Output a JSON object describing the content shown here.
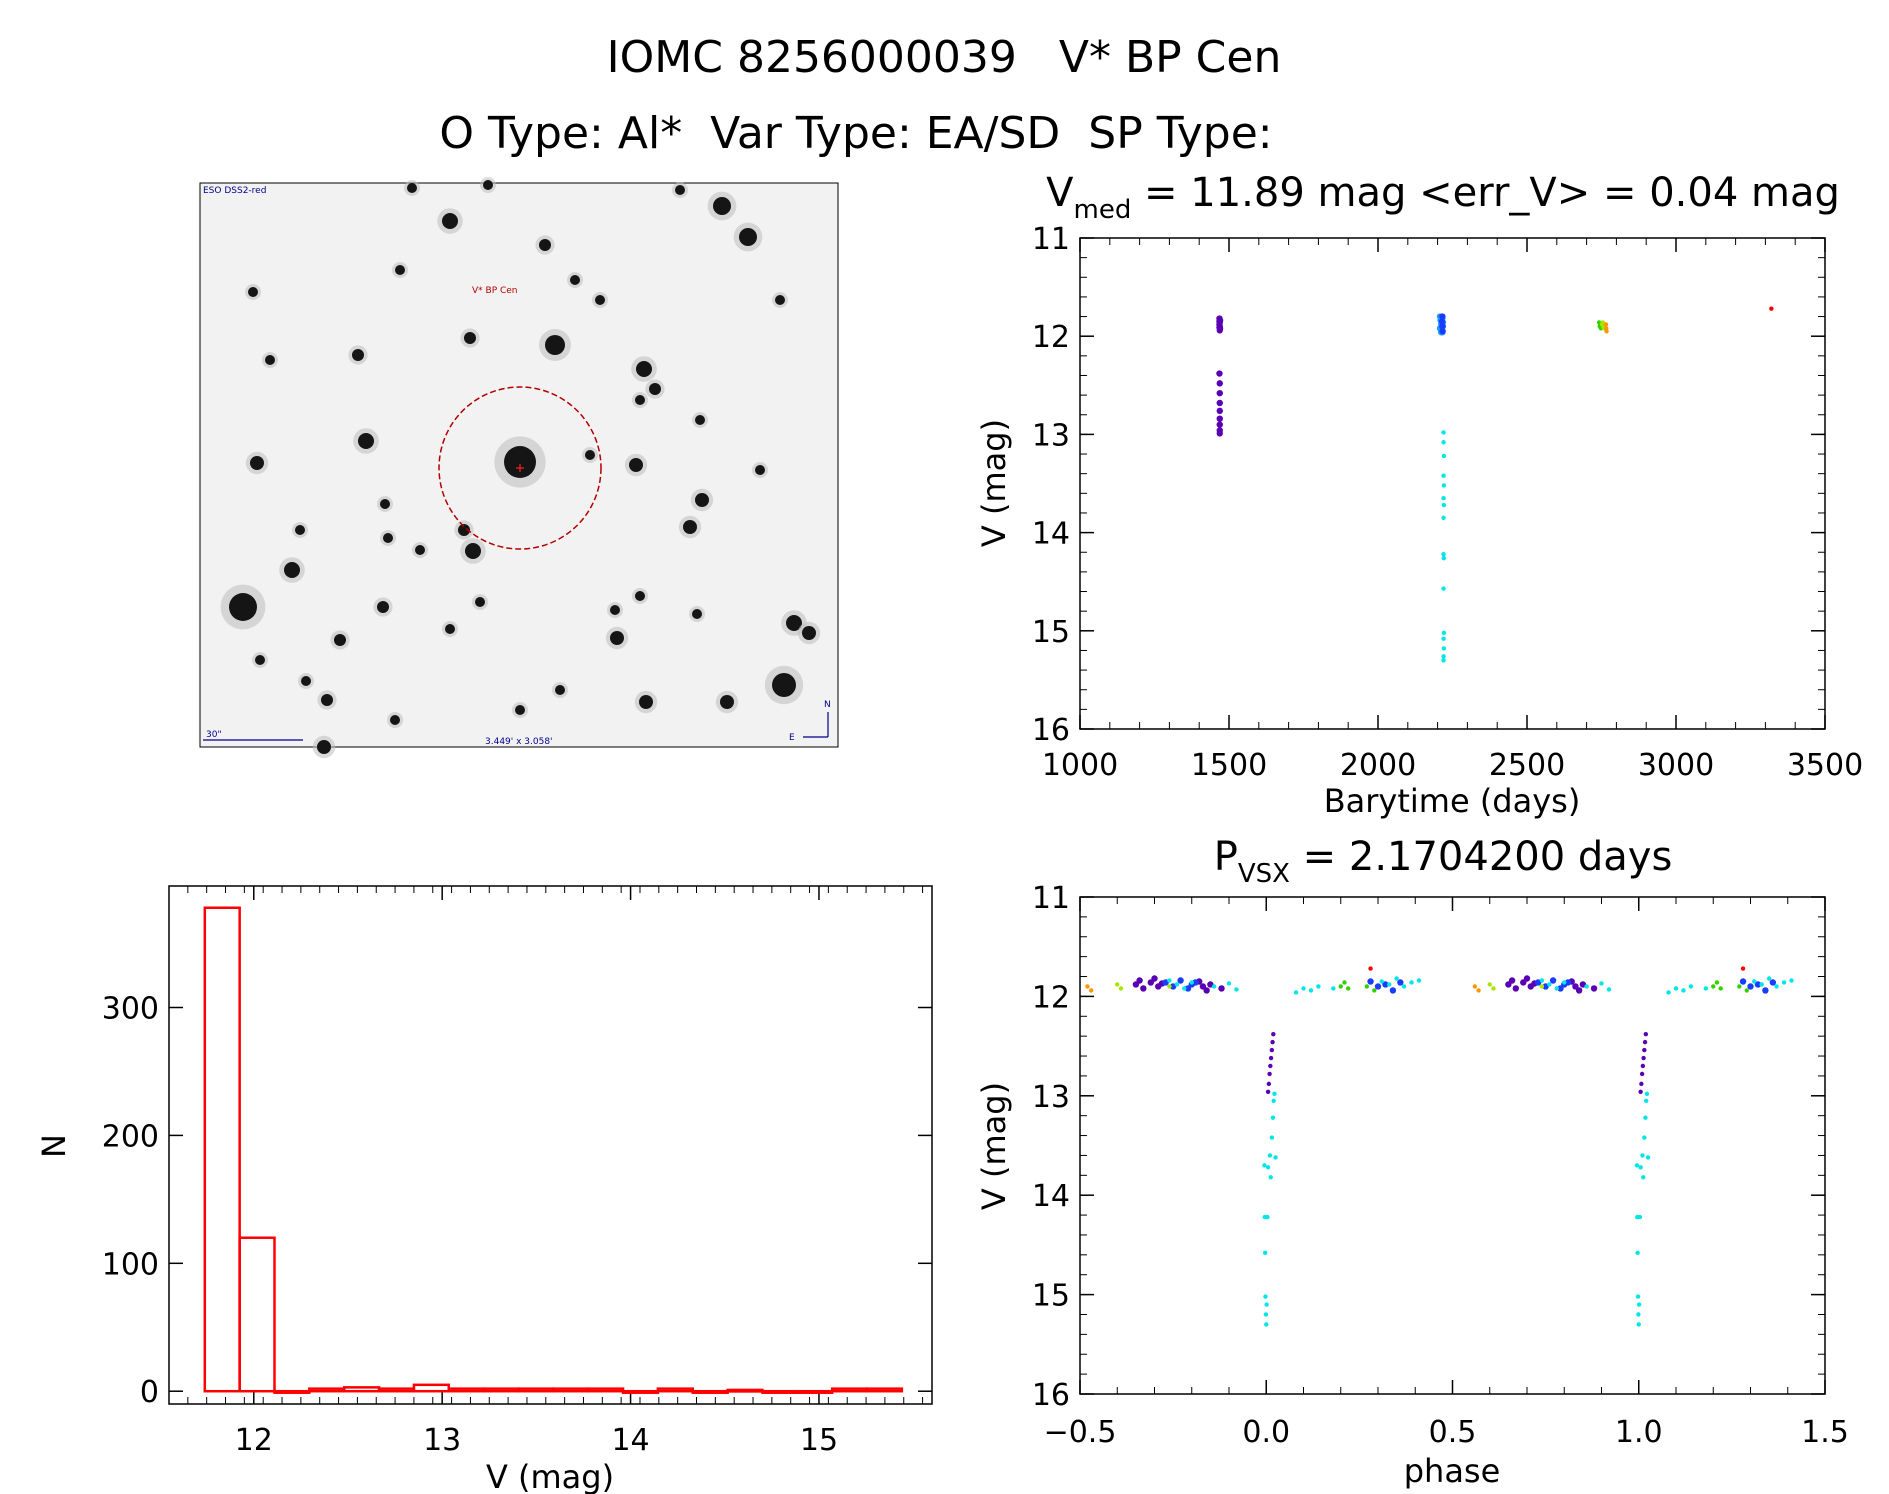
{
  "header": {
    "line1": "IOMC 8256000039   V* BP Cen",
    "line2": "O Type: Al*  Var Type: EA/SD  SP Type:"
  },
  "finder": {
    "survey_label": "ESO DSS2-red",
    "target_label": "V* BP Cen",
    "scale_label": "30\"",
    "fov_label": "3.449' x 3.058'",
    "north_label": "N",
    "east_label": "E"
  },
  "colors": {
    "hist": "#ff0000",
    "purple": "#5a00b4",
    "blue": "#1a3cff",
    "lightblue": "#1e9bff",
    "cyan": "#00e6e6",
    "green": "#32d200",
    "yellowgreen": "#a8e600",
    "orange": "#ff9600",
    "red": "#ff0000",
    "circle": "#b40000"
  },
  "chart_data": [
    {
      "id": "lightcurve",
      "type": "scatter",
      "title_main": "V",
      "title_sub": "med",
      "title_rest": " = 11.89 mag <err_V> = 0.04 mag",
      "xlabel": "Barytime (days)",
      "ylabel": "V (mag)",
      "xlim": [
        1000,
        3500
      ],
      "ylim": [
        16,
        11
      ],
      "xticks": [
        1000,
        1500,
        2000,
        2500,
        3000,
        3500
      ],
      "yticks": [
        11,
        12,
        13,
        14,
        15,
        16
      ],
      "series": [
        {
          "name": "season1",
          "color": "purple",
          "x": [
            1468,
            1468,
            1468,
            1468,
            1469,
            1469,
            1469,
            1470,
            1470,
            1468,
            1469,
            1469,
            1469,
            1469,
            1469,
            1469,
            1469,
            1469
          ],
          "y": [
            11.82,
            11.85,
            11.88,
            11.91,
            11.94,
            11.86,
            11.9,
            11.84,
            11.92,
            12.38,
            12.48,
            12.58,
            12.68,
            12.76,
            12.84,
            12.9,
            12.96,
            12.99
          ]
        },
        {
          "name": "season2a",
          "color": "lightblue",
          "x": [
            2208,
            2210,
            2212,
            2214,
            2216,
            2218,
            2208,
            2212,
            2216,
            2218
          ],
          "y": [
            11.8,
            11.84,
            11.88,
            11.92,
            11.96,
            11.86,
            11.92,
            11.96,
            11.82,
            11.9
          ]
        },
        {
          "name": "season2b",
          "color": "blue",
          "x": [
            2215,
            2216,
            2217,
            2216
          ],
          "y": [
            11.85,
            11.9,
            11.95,
            11.8
          ]
        },
        {
          "name": "season2-eclipse",
          "color": "cyan",
          "x": [
            2220,
            2220,
            2221,
            2220,
            2221,
            2220,
            2221,
            2220,
            2220,
            2221,
            2220,
            2221,
            2220,
            2221,
            2220,
            2220
          ],
          "y": [
            12.98,
            13.08,
            13.22,
            13.42,
            13.52,
            13.65,
            13.72,
            13.85,
            14.22,
            14.26,
            14.57,
            15.02,
            15.08,
            15.18,
            15.26,
            15.3
          ]
        },
        {
          "name": "season3a",
          "color": "green",
          "x": [
            2742,
            2744,
            2746,
            2748
          ],
          "y": [
            11.86,
            11.9,
            11.88,
            11.92
          ]
        },
        {
          "name": "season3b",
          "color": "yellowgreen",
          "x": [
            2752,
            2754,
            2756,
            2758
          ],
          "y": [
            11.88,
            11.86,
            11.9,
            11.92
          ]
        },
        {
          "name": "season3c",
          "color": "orange",
          "x": [
            2765,
            2766,
            2767
          ],
          "y": [
            11.88,
            11.92,
            11.95
          ]
        },
        {
          "name": "season4",
          "color": "red",
          "x": [
            3320
          ],
          "y": [
            11.72
          ]
        }
      ]
    },
    {
      "id": "histogram",
      "type": "bar",
      "title": "",
      "xlabel": "V (mag)",
      "ylabel": "N",
      "xlim": [
        11.55,
        15.6
      ],
      "ylim": [
        -10,
        395
      ],
      "xticks": [
        12,
        13,
        14,
        15
      ],
      "yticks": [
        0,
        100,
        200,
        300
      ],
      "bin_width": 0.185,
      "bin_starts": [
        11.74,
        11.925,
        12.11,
        12.295,
        12.48,
        12.665,
        12.85,
        13.035,
        13.22,
        13.405,
        13.59,
        13.775,
        13.96,
        14.145,
        14.33,
        14.515,
        14.7,
        14.885,
        15.07,
        15.255
      ],
      "values": [
        378,
        120,
        0,
        2,
        3,
        2,
        5,
        2,
        2,
        2,
        2,
        2,
        0,
        2,
        0,
        1,
        0,
        0,
        2,
        2
      ]
    },
    {
      "id": "phased",
      "type": "scatter",
      "title_main": "P",
      "title_sub": "VSX",
      "title_rest": " = 2.1704200 days",
      "xlabel": "phase",
      "ylabel": "V (mag)",
      "xlim": [
        -0.5,
        1.5
      ],
      "ylim": [
        16,
        11
      ],
      "xticks": [
        -0.5,
        0.0,
        0.5,
        1.0,
        1.5
      ],
      "xtick_labels": [
        "−0.5",
        "0.0",
        "0.5",
        "1.0",
        "1.5"
      ],
      "yticks": [
        11,
        12,
        13,
        14,
        15,
        16
      ],
      "series": [
        {
          "name": "out-purple",
          "color": "purple",
          "x": [
            -0.35,
            -0.34,
            -0.33,
            -0.31,
            -0.3,
            -0.29,
            -0.28,
            -0.18,
            -0.17,
            -0.16,
            -0.15,
            -0.12,
            0.65,
            0.66,
            0.67,
            0.69,
            0.7,
            0.71,
            0.72,
            0.82,
            0.83,
            0.84,
            0.85,
            0.88
          ],
          "y": [
            11.88,
            11.84,
            11.92,
            11.86,
            11.82,
            11.9,
            11.87,
            11.85,
            11.9,
            11.94,
            11.88,
            11.92,
            11.88,
            11.84,
            11.92,
            11.86,
            11.82,
            11.9,
            11.87,
            11.85,
            11.9,
            11.94,
            11.88,
            11.92
          ]
        },
        {
          "name": "out-blue",
          "color": "blue",
          "x": [
            -0.27,
            -0.25,
            -0.23,
            -0.21,
            -0.2,
            -0.19,
            0.28,
            0.3,
            0.32,
            0.34,
            0.36,
            0.73,
            0.75,
            0.77,
            0.79,
            0.8,
            0.81,
            1.28,
            1.3,
            1.32,
            1.34,
            1.36
          ],
          "y": [
            11.86,
            11.9,
            11.84,
            11.92,
            11.88,
            11.86,
            11.85,
            11.9,
            11.88,
            11.94,
            11.86,
            11.86,
            11.9,
            11.84,
            11.92,
            11.88,
            11.86,
            11.85,
            11.9,
            11.88,
            11.94,
            11.86
          ]
        },
        {
          "name": "out-cyan",
          "color": "cyan",
          "x": [
            -0.26,
            -0.24,
            -0.22,
            -0.2,
            -0.14,
            -0.1,
            -0.08,
            0.08,
            0.1,
            0.12,
            0.14,
            0.18,
            0.31,
            0.33,
            0.35,
            0.37,
            0.39,
            0.41,
            0.74,
            0.76,
            0.78,
            0.8,
            0.86,
            0.9,
            0.92,
            1.08,
            1.1,
            1.12,
            1.14,
            1.18,
            1.31,
            1.33,
            1.35,
            1.37,
            1.39,
            1.41
          ],
          "y": [
            11.84,
            11.88,
            11.92,
            11.86,
            11.9,
            11.87,
            11.93,
            11.96,
            11.92,
            11.94,
            11.9,
            11.92,
            11.85,
            11.88,
            11.82,
            11.9,
            11.86,
            11.84,
            11.84,
            11.88,
            11.92,
            11.86,
            11.9,
            11.87,
            11.93,
            11.96,
            11.92,
            11.94,
            11.9,
            11.92,
            11.85,
            11.88,
            11.82,
            11.9,
            11.86,
            11.84
          ]
        },
        {
          "name": "out-green",
          "color": "green",
          "x": [
            0.2,
            0.21,
            0.22,
            0.27,
            0.29,
            1.2,
            1.21,
            1.22,
            1.27,
            1.29
          ],
          "y": [
            11.9,
            11.86,
            11.92,
            11.9,
            11.94,
            11.9,
            11.86,
            11.92,
            11.9,
            11.94
          ]
        },
        {
          "name": "out-yellowgreen",
          "color": "yellowgreen",
          "x": [
            -0.4,
            -0.39,
            -0.26,
            0.6,
            0.61,
            0.74
          ],
          "y": [
            11.88,
            11.92,
            11.9,
            11.88,
            11.92,
            11.9
          ]
        },
        {
          "name": "out-orange",
          "color": "orange",
          "x": [
            -0.48,
            -0.47,
            0.56,
            0.57
          ],
          "y": [
            11.9,
            11.94,
            11.9,
            11.94
          ]
        },
        {
          "name": "out-red",
          "color": "red",
          "x": [
            0.28,
            1.28
          ],
          "y": [
            11.72,
            11.72
          ]
        },
        {
          "name": "ecl-purple",
          "color": "purple",
          "x": [
            0.005,
            0.007,
            0.009,
            0.011,
            0.013,
            0.015,
            0.017,
            0.019,
            1.005,
            1.007,
            1.009,
            1.011,
            1.013,
            1.015,
            1.017,
            1.019
          ],
          "y": [
            12.96,
            12.88,
            12.78,
            12.7,
            12.62,
            12.54,
            12.46,
            12.38,
            12.96,
            12.88,
            12.78,
            12.7,
            12.62,
            12.54,
            12.46,
            12.38
          ]
        },
        {
          "name": "ecl-cyan",
          "color": "cyan",
          "x": [
            -0.005,
            -0.004,
            -0.003,
            -0.002,
            -0.001,
            0.0,
            0.001,
            0.003,
            0.005,
            0.01,
            0.012,
            0.015,
            0.018,
            0.02,
            0.022,
            0.025,
            0.995,
            0.996,
            0.997,
            0.998,
            0.999,
            1.0,
            1.001,
            1.003,
            1.005,
            1.01,
            1.012,
            1.015,
            1.018,
            1.02,
            1.022,
            1.025
          ],
          "y": [
            13.7,
            14.22,
            14.58,
            15.02,
            15.2,
            15.3,
            15.1,
            14.22,
            13.72,
            13.6,
            13.82,
            13.42,
            13.22,
            13.05,
            12.98,
            13.62,
            13.7,
            14.22,
            14.58,
            15.02,
            15.2,
            15.3,
            15.1,
            14.22,
            13.72,
            13.6,
            13.82,
            13.42,
            13.22,
            13.05,
            12.98,
            13.62
          ]
        }
      ]
    }
  ]
}
